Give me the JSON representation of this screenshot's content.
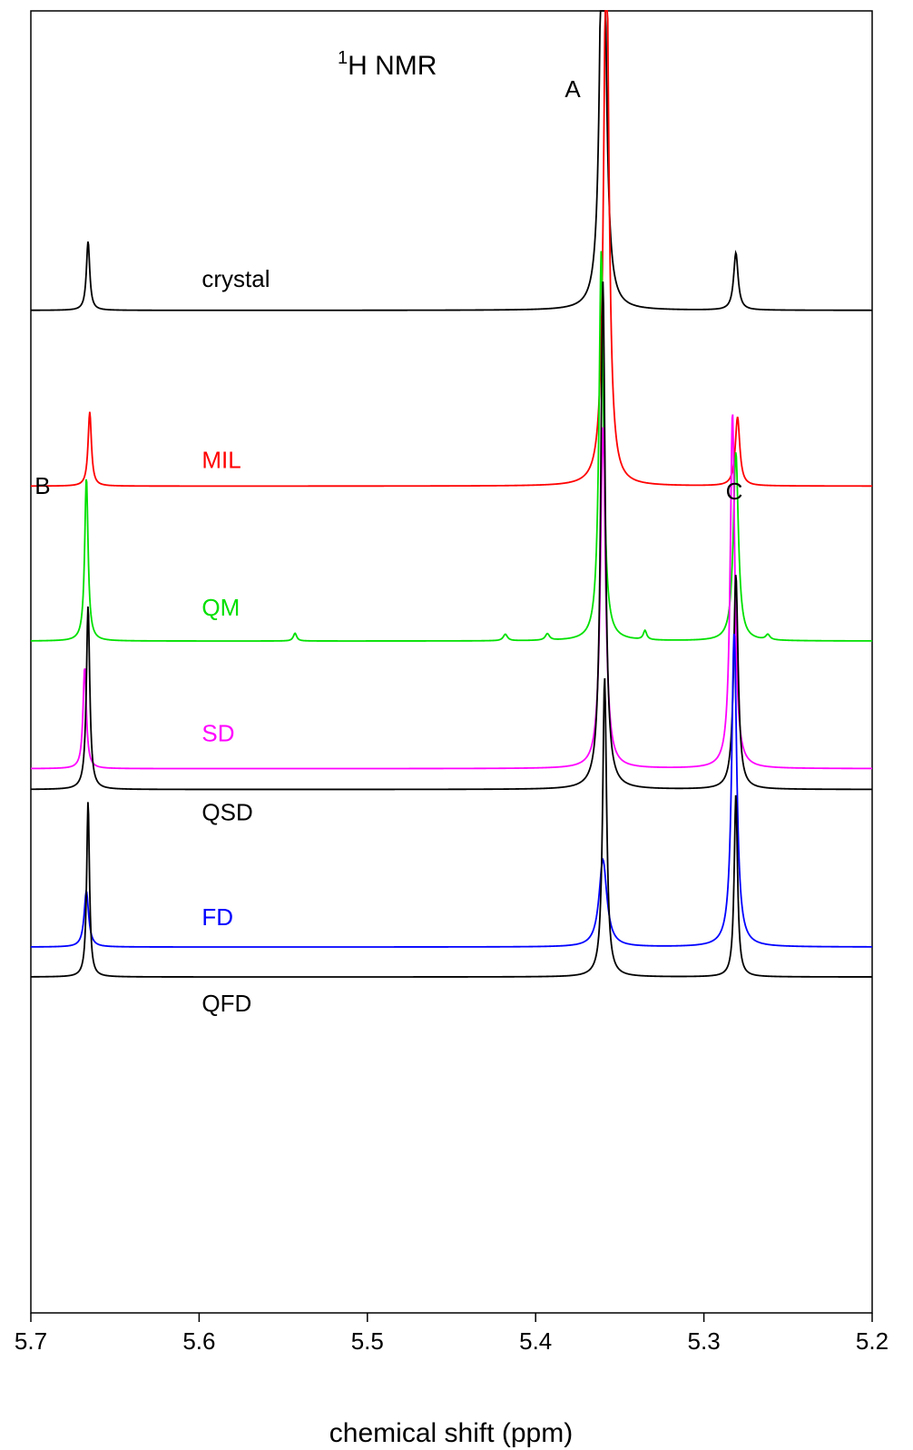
{
  "chart_data": {
    "type": "line",
    "title_prefix": "1",
    "title_main": "H NMR",
    "xlabel": "chemical shift (ppm)",
    "ylabel": "",
    "xlim": [
      5.7,
      5.2
    ],
    "x_reversed": true,
    "grid": false,
    "legend": "none",
    "xticks": [
      5.7,
      5.6,
      5.5,
      5.4,
      5.3,
      5.2
    ],
    "xtick_labels": [
      "5.7",
      "5.6",
      "5.5",
      "5.4",
      "5.3",
      "5.2"
    ],
    "peak_labels": [
      {
        "text": "A",
        "x": 5.378
      },
      {
        "text": "B",
        "x": 5.693
      },
      {
        "text": "C",
        "x": 5.282
      }
    ],
    "series": [
      {
        "name": "crystal",
        "color": "#000000",
        "label_x": 5.6,
        "baseline": 0.23,
        "peaks": [
          {
            "x": 5.666,
            "h": 0.053,
            "w": 0.0012
          },
          {
            "x": 5.36,
            "h": 0.43,
            "w": 0.0018
          },
          {
            "x": 5.281,
            "h": 0.044,
            "w": 0.0016
          }
        ]
      },
      {
        "name": "MIL",
        "color": "#ff0000",
        "label_x": 5.6,
        "baseline": 0.365,
        "peaks": [
          {
            "x": 5.665,
            "h": 0.057,
            "w": 0.0012
          },
          {
            "x": 5.358,
            "h": 0.44,
            "w": 0.0018
          },
          {
            "x": 5.28,
            "h": 0.053,
            "w": 0.0016
          }
        ]
      },
      {
        "name": "QM",
        "color": "#00e000",
        "label_x": 5.6,
        "baseline": 0.484,
        "peaks": [
          {
            "x": 5.667,
            "h": 0.126,
            "w": 0.0012
          },
          {
            "x": 5.361,
            "h": 0.3,
            "w": 0.0016
          },
          {
            "x": 5.281,
            "h": 0.145,
            "w": 0.0018
          },
          {
            "x": 5.418,
            "h": 0.005,
            "w": 0.0015
          },
          {
            "x": 5.393,
            "h": 0.005,
            "w": 0.0015
          },
          {
            "x": 5.335,
            "h": 0.007,
            "w": 0.0012
          },
          {
            "x": 5.262,
            "h": 0.004,
            "w": 0.0015
          },
          {
            "x": 5.543,
            "h": 0.006,
            "w": 0.0012
          }
        ]
      },
      {
        "name": "SD",
        "color": "#ff00ff",
        "label_x": 5.6,
        "baseline": 0.582,
        "peaks": [
          {
            "x": 5.668,
            "h": 0.078,
            "w": 0.0012
          },
          {
            "x": 5.36,
            "h": 0.262,
            "w": 0.0018
          },
          {
            "x": 5.283,
            "h": 0.274,
            "w": 0.0016
          }
        ]
      },
      {
        "name": "QSD",
        "color": "#000000",
        "label_x": 5.6,
        "baseline": 0.598,
        "peaks": [
          {
            "x": 5.666,
            "h": 0.141,
            "w": 0.0012
          },
          {
            "x": 5.36,
            "h": 0.39,
            "w": 0.0016
          },
          {
            "x": 5.281,
            "h": 0.165,
            "w": 0.0016
          }
        ]
      },
      {
        "name": "FD",
        "color": "#0000ff",
        "label_x": 5.6,
        "baseline": 0.719,
        "peaks": [
          {
            "x": 5.667,
            "h": 0.043,
            "w": 0.0016
          },
          {
            "x": 5.36,
            "h": 0.067,
            "w": 0.0028
          },
          {
            "x": 5.282,
            "h": 0.242,
            "w": 0.0018
          }
        ]
      },
      {
        "name": "QFD",
        "color": "#000000",
        "label_x": 5.6,
        "baseline": 0.742,
        "peaks": [
          {
            "x": 5.666,
            "h": 0.135,
            "w": 0.001
          },
          {
            "x": 5.359,
            "h": 0.23,
            "w": 0.0014
          },
          {
            "x": 5.281,
            "h": 0.14,
            "w": 0.0012
          }
        ]
      }
    ]
  }
}
